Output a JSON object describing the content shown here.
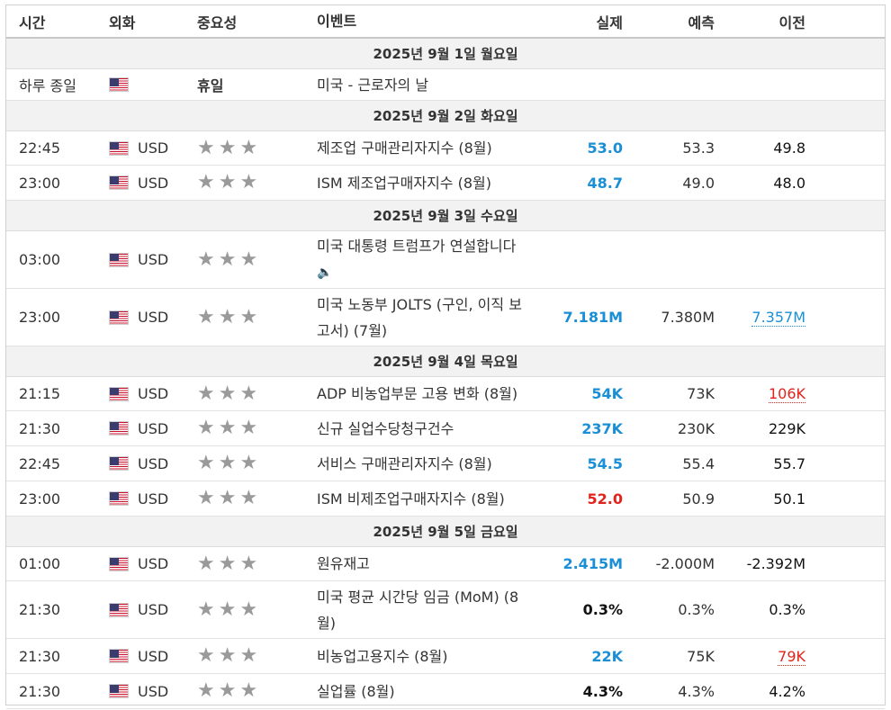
{
  "header": {
    "time": "시간",
    "currency": "외화",
    "importance": "중요성",
    "event": "이벤트",
    "actual": "실제",
    "forecast": "예측",
    "previous": "이전"
  },
  "days": [
    {
      "date": "2025년 9월 1일 월요일",
      "rows": [
        {
          "time": "하루 종일",
          "currency": "",
          "holiday": "휴일",
          "event": "미국 - 근로자의 날"
        }
      ]
    },
    {
      "date": "2025년 9월 2일 화요일",
      "rows": [
        {
          "time": "22:45",
          "currency": "USD",
          "event": "제조업 구매관리자지수 (8월)",
          "actual": "53.0",
          "actual_color": "blue",
          "forecast": "53.3",
          "previous": "49.8",
          "previous_color": "black"
        },
        {
          "time": "23:00",
          "currency": "USD",
          "event": "ISM 제조업구매자지수 (8월)",
          "actual": "48.7",
          "actual_color": "blue",
          "forecast": "49.0",
          "previous": "48.0",
          "previous_color": "black"
        }
      ]
    },
    {
      "date": "2025년 9월 3일 수요일",
      "rows": [
        {
          "time": "03:00",
          "currency": "USD",
          "event": "미국 대통령 트럼프가 연설합니다",
          "speech": true,
          "actual": "",
          "forecast": "",
          "previous": ""
        },
        {
          "time": "23:00",
          "currency": "USD",
          "event": "미국 노동부 JOLTS (구인, 이직 보고서) (7월)",
          "actual": "7.181M",
          "actual_color": "blue",
          "forecast": "7.380M",
          "previous": "7.357M",
          "previous_color": "blue",
          "previous_revised": true
        }
      ]
    },
    {
      "date": "2025년 9월 4일 목요일",
      "rows": [
        {
          "time": "21:15",
          "currency": "USD",
          "event": "ADP 비농업부문 고용 변화 (8월)",
          "actual": "54K",
          "actual_color": "blue",
          "forecast": "73K",
          "previous": "106K",
          "previous_color": "red",
          "previous_revised": true
        },
        {
          "time": "21:30",
          "currency": "USD",
          "event": "신규 실업수당청구건수",
          "actual": "237K",
          "actual_color": "blue",
          "forecast": "230K",
          "previous": "229K",
          "previous_color": "black"
        },
        {
          "time": "22:45",
          "currency": "USD",
          "event": "서비스 구매관리자지수 (8월)",
          "actual": "54.5",
          "actual_color": "blue",
          "forecast": "55.4",
          "previous": "55.7",
          "previous_color": "black"
        },
        {
          "time": "23:00",
          "currency": "USD",
          "event": "ISM 비제조업구매자지수 (8월)",
          "actual": "52.0",
          "actual_color": "red",
          "forecast": "50.9",
          "previous": "50.1",
          "previous_color": "black"
        }
      ]
    },
    {
      "date": "2025년 9월 5일 금요일",
      "rows": [
        {
          "time": "01:00",
          "currency": "USD",
          "event": "원유재고",
          "actual": "2.415M",
          "actual_color": "blue",
          "forecast": "-2.000M",
          "previous": "-2.392M",
          "previous_color": "black"
        },
        {
          "time": "21:30",
          "currency": "USD",
          "event": "미국 평균 시간당 임금 (MoM) (8월)",
          "actual": "0.3%",
          "actual_color": "black",
          "forecast": "0.3%",
          "previous": "0.3%",
          "previous_color": "black"
        },
        {
          "time": "21:30",
          "currency": "USD",
          "event": "비농업고용지수 (8월)",
          "actual": "22K",
          "actual_color": "blue",
          "forecast": "75K",
          "previous": "79K",
          "previous_color": "red",
          "previous_revised": true
        },
        {
          "time": "21:30",
          "currency": "USD",
          "event": "실업률 (8월)",
          "actual": "4.3%",
          "actual_color": "black",
          "forecast": "4.3%",
          "previous": "4.2%",
          "previous_color": "black"
        }
      ]
    }
  ],
  "layout": {
    "row_heights": {
      "0": 37,
      "2": [
        38,
        39,
        39
      ],
      "3": [
        64,
        64
      ],
      "4": [
        38,
        39,
        39,
        39
      ],
      "5": [
        38,
        64,
        39,
        39
      ]
    }
  },
  "icons": {
    "flag": "us-flag-icon",
    "star": "star-icon",
    "speaker": "speaker-icon"
  }
}
